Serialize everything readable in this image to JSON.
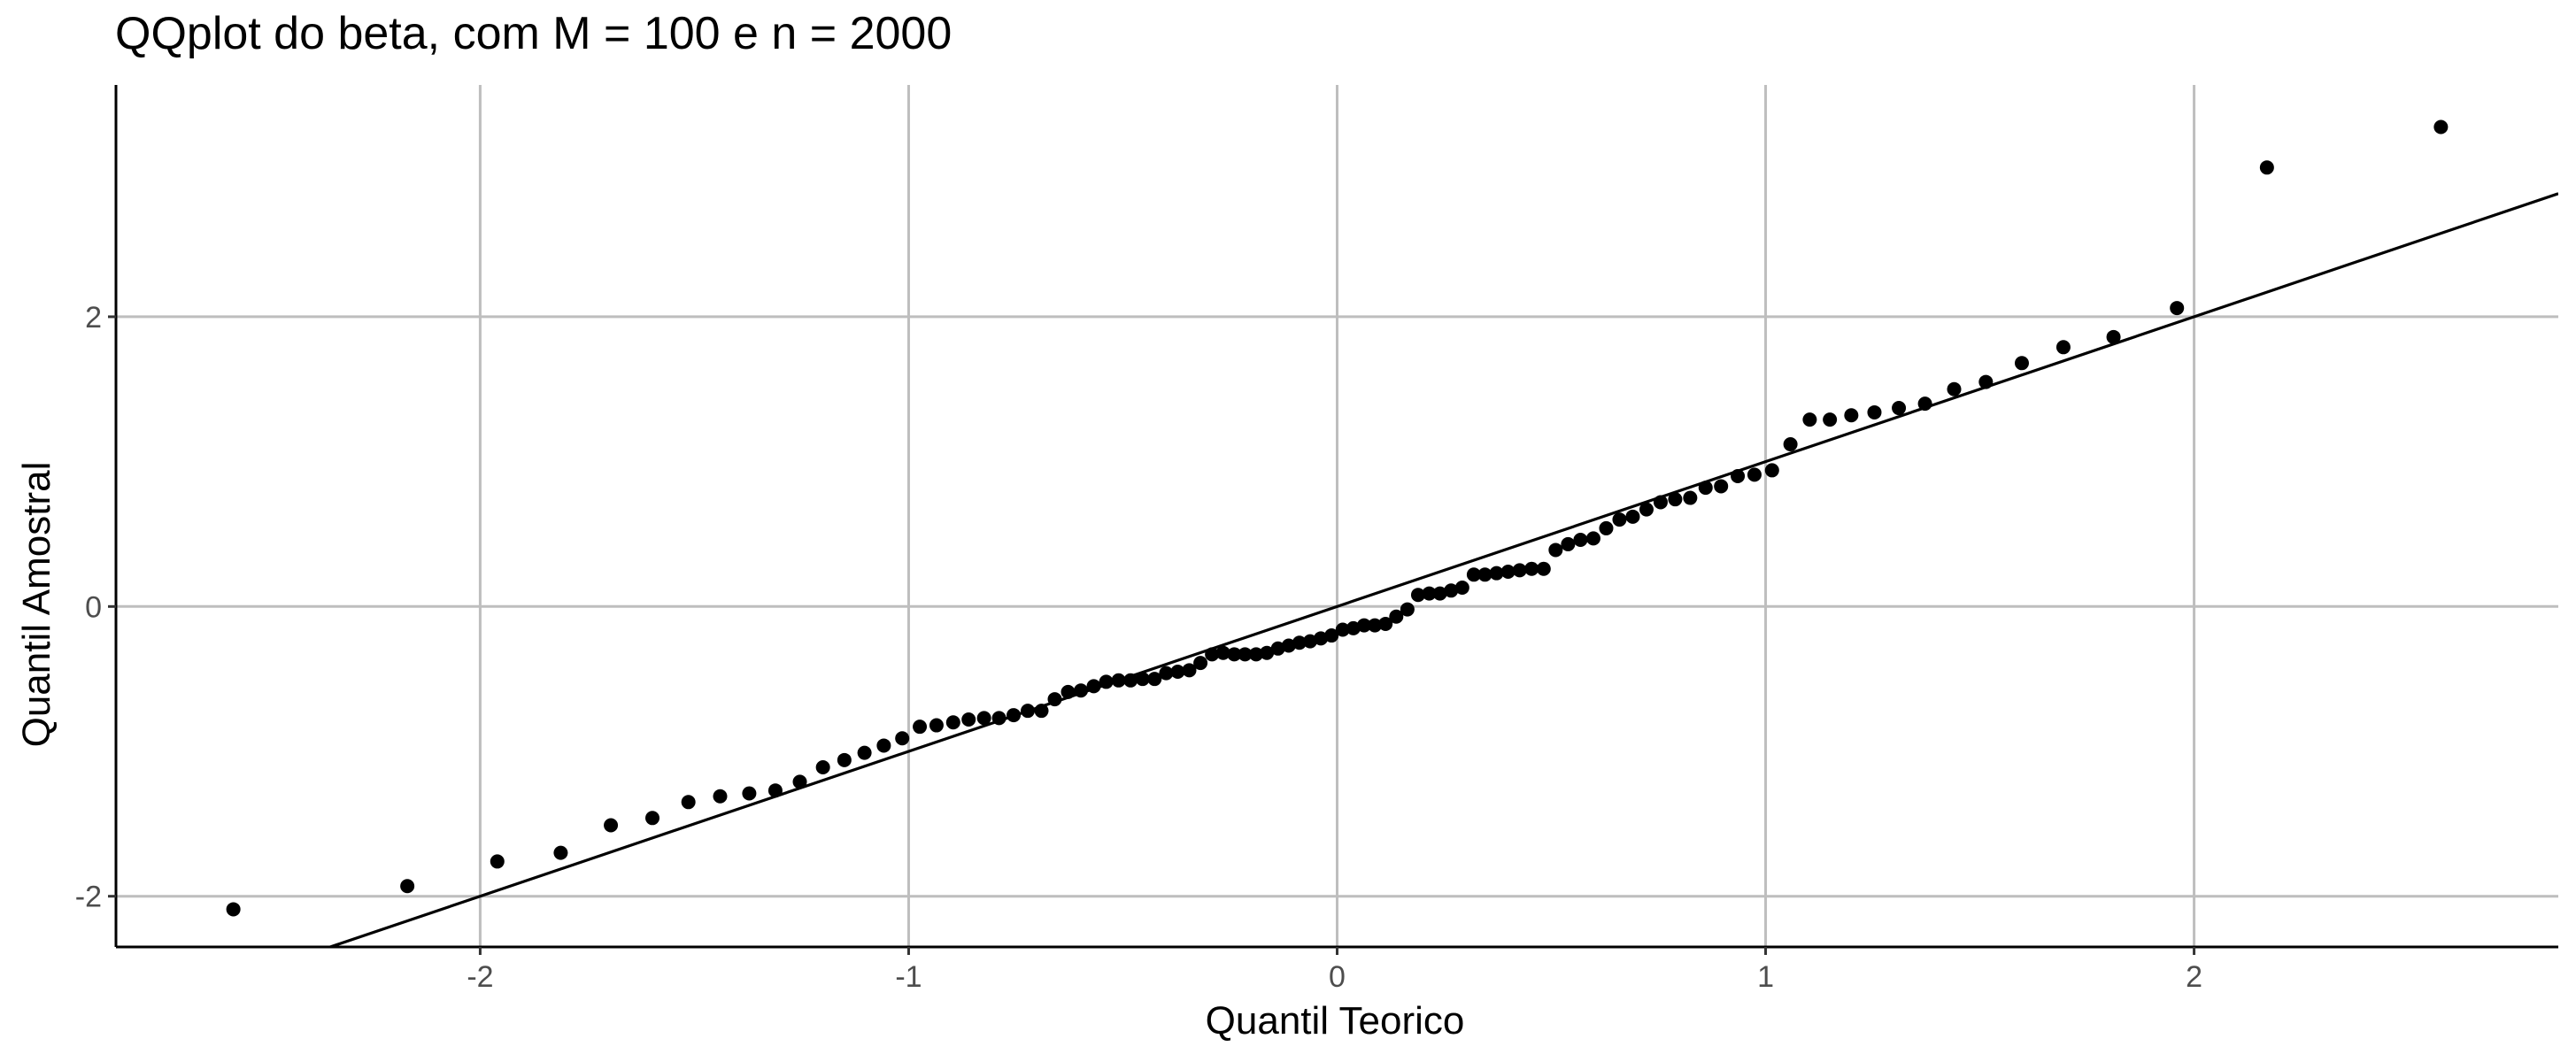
{
  "chart_data": {
    "type": "scatter",
    "title": "QQplot do beta, com M = 100 e n = 2000",
    "xlabel": "Quantil Teorico",
    "ylabel": "Quantil Amostral",
    "xlim": [
      -2.85,
      2.85
    ],
    "ylim": [
      -2.35,
      3.6
    ],
    "xticks": [
      -2,
      -1,
      0,
      1,
      2
    ],
    "xtick_labels": [
      "-2",
      "-1",
      "0",
      "1",
      "2"
    ],
    "yticks": [
      -2,
      0,
      2
    ],
    "ytick_labels": [
      "-2",
      "0",
      "2"
    ],
    "grid": true,
    "reference_line": {
      "intercept": 0,
      "slope": 1
    },
    "point_color": "#000000",
    "line_color": "#000000",
    "grid_color": "#bebebe",
    "x": [
      -2.576,
      -2.17,
      -1.96,
      -1.812,
      -1.695,
      -1.598,
      -1.514,
      -1.44,
      -1.372,
      -1.311,
      -1.254,
      -1.2,
      -1.15,
      -1.103,
      -1.058,
      -1.015,
      -0.974,
      -0.935,
      -0.896,
      -0.86,
      -0.824,
      -0.789,
      -0.755,
      -0.722,
      -0.69,
      -0.659,
      -0.628,
      -0.598,
      -0.568,
      -0.539,
      -0.51,
      -0.482,
      -0.454,
      -0.426,
      -0.399,
      -0.372,
      -0.345,
      -0.319,
      -0.292,
      -0.266,
      -0.24,
      -0.215,
      -0.189,
      -0.164,
      -0.138,
      -0.113,
      -0.088,
      -0.063,
      -0.038,
      -0.013,
      0.013,
      0.038,
      0.063,
      0.088,
      0.113,
      0.138,
      0.164,
      0.189,
      0.215,
      0.24,
      0.266,
      0.292,
      0.319,
      0.345,
      0.372,
      0.399,
      0.426,
      0.454,
      0.482,
      0.51,
      0.539,
      0.568,
      0.598,
      0.628,
      0.659,
      0.69,
      0.722,
      0.755,
      0.789,
      0.824,
      0.86,
      0.896,
      0.935,
      0.974,
      1.015,
      1.058,
      1.103,
      1.15,
      1.2,
      1.254,
      1.311,
      1.372,
      1.44,
      1.514,
      1.598,
      1.695,
      1.812,
      1.96,
      2.17,
      2.576
    ],
    "y": [
      -2.09,
      -1.93,
      -1.76,
      -1.7,
      -1.51,
      -1.46,
      -1.35,
      -1.31,
      -1.29,
      -1.27,
      -1.21,
      -1.11,
      -1.06,
      -1.01,
      -0.96,
      -0.91,
      -0.83,
      -0.82,
      -0.8,
      -0.78,
      -0.77,
      -0.77,
      -0.75,
      -0.72,
      -0.72,
      -0.64,
      -0.59,
      -0.58,
      -0.55,
      -0.52,
      -0.51,
      -0.51,
      -0.5,
      -0.5,
      -0.46,
      -0.45,
      -0.44,
      -0.39,
      -0.33,
      -0.32,
      -0.33,
      -0.33,
      -0.33,
      -0.32,
      -0.29,
      -0.27,
      -0.25,
      -0.24,
      -0.22,
      -0.2,
      -0.16,
      -0.15,
      -0.13,
      -0.13,
      -0.12,
      -0.07,
      -0.02,
      0.08,
      0.09,
      0.09,
      0.11,
      0.13,
      0.22,
      0.22,
      0.23,
      0.24,
      0.25,
      0.26,
      0.26,
      0.39,
      0.43,
      0.46,
      0.47,
      0.54,
      0.6,
      0.62,
      0.67,
      0.72,
      0.74,
      0.75,
      0.82,
      0.83,
      0.9,
      0.91,
      0.94,
      1.12,
      1.29,
      1.29,
      1.32,
      1.34,
      1.37,
      1.4,
      1.5,
      1.55,
      1.68,
      1.79,
      1.86,
      2.06,
      3.03,
      3.31
    ]
  }
}
